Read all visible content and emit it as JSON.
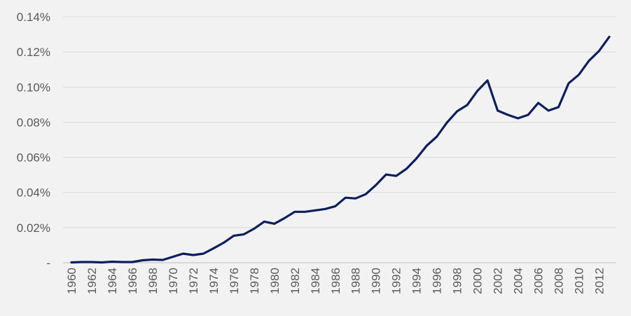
{
  "chart_data": {
    "type": "line",
    "title": "",
    "xlabel": "",
    "ylabel": "",
    "grid": true,
    "legend": "none",
    "ylim": [
      0,
      0.14
    ],
    "y_ticks": [
      {
        "value": 0,
        "label": "-"
      },
      {
        "value": 0.02,
        "label": "0.02%"
      },
      {
        "value": 0.04,
        "label": "0.04%"
      },
      {
        "value": 0.06,
        "label": "0.06%"
      },
      {
        "value": 0.08,
        "label": "0.08%"
      },
      {
        "value": 0.1,
        "label": "0.10%"
      },
      {
        "value": 0.12,
        "label": "0.12%"
      },
      {
        "value": 0.14,
        "label": "0.14%"
      }
    ],
    "x_tick_labels": [
      "1960",
      "1962",
      "1964",
      "1966",
      "1968",
      "1970",
      "1972",
      "1974",
      "1976",
      "1978",
      "1980",
      "1982",
      "1984",
      "1986",
      "1988",
      "1990",
      "1992",
      "1994",
      "1996",
      "1998",
      "2000",
      "2002",
      "2004",
      "2006",
      "2008",
      "2010",
      "2012"
    ],
    "colors": {
      "line": "#0d1f5c",
      "grid": "#d9d9d9",
      "background": "#f2f2f2"
    },
    "x": [
      1960,
      1961,
      1962,
      1963,
      1964,
      1965,
      1966,
      1967,
      1968,
      1969,
      1970,
      1971,
      1972,
      1973,
      1974,
      1975,
      1976,
      1977,
      1978,
      1979,
      1980,
      1981,
      1982,
      1983,
      1984,
      1985,
      1986,
      1987,
      1988,
      1989,
      1990,
      1991,
      1992,
      1993,
      1994,
      1995,
      1996,
      1997,
      1998,
      1999,
      2000,
      2001,
      2002,
      2003,
      2004,
      2005,
      2006,
      2007,
      2008,
      2009,
      2010,
      2011,
      2012,
      2013
    ],
    "series": [
      {
        "values": [
          0.0002,
          0.0004,
          0.0004,
          0.0002,
          0.0006,
          0.0004,
          0.0004,
          0.0014,
          0.0018,
          0.0016,
          0.0034,
          0.0052,
          0.0044,
          0.0052,
          0.0082,
          0.0114,
          0.0154,
          0.0162,
          0.0194,
          0.0234,
          0.0222,
          0.0254,
          0.029,
          0.029,
          0.0298,
          0.0306,
          0.0322,
          0.037,
          0.0366,
          0.039,
          0.0442,
          0.0502,
          0.0494,
          0.0534,
          0.0594,
          0.0666,
          0.0718,
          0.0798,
          0.0862,
          0.0898,
          0.0978,
          0.1038,
          0.0866,
          0.0842,
          0.0822,
          0.0842,
          0.091,
          0.0866,
          0.0886,
          0.1022,
          0.107,
          0.115,
          0.1206,
          0.1286
        ]
      }
    ]
  }
}
